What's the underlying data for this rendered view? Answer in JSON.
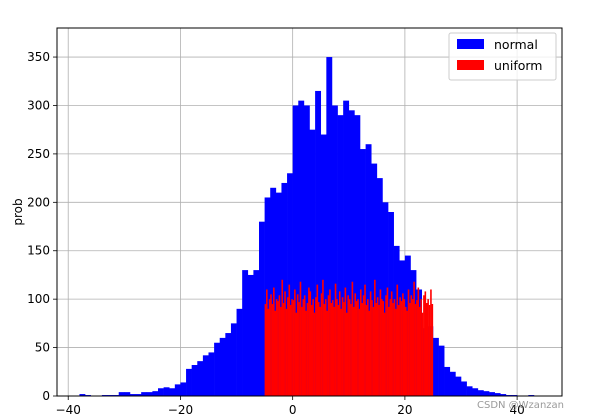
{
  "chart_data": {
    "type": "bar",
    "title": "",
    "xlabel": "",
    "ylabel": "prob",
    "xlim": [
      -42,
      48
    ],
    "ylim": [
      0,
      380
    ],
    "x_ticks": [
      -40,
      -20,
      0,
      20,
      40
    ],
    "y_ticks": [
      0,
      50,
      100,
      150,
      200,
      250,
      300,
      350
    ],
    "grid": true,
    "legend_position": "top-right",
    "series": [
      {
        "name": "normal",
        "color": "#0000ff",
        "bin_width": 1,
        "x": [
          -38,
          -37,
          -36,
          -35,
          -34,
          -33,
          -32,
          -31,
          -30,
          -29,
          -28,
          -27,
          -26,
          -25,
          -24,
          -23,
          -22,
          -21,
          -20,
          -19,
          -18,
          -17,
          -16,
          -15,
          -14,
          -13,
          -12,
          -11,
          -10,
          -9,
          -8,
          -7,
          -6,
          -5,
          -4,
          -3,
          -2,
          -1,
          0,
          1,
          2,
          3,
          4,
          5,
          6,
          7,
          8,
          9,
          10,
          11,
          12,
          13,
          14,
          15,
          16,
          17,
          18,
          19,
          20,
          21,
          22,
          23,
          24,
          25,
          26,
          27,
          28,
          29,
          30,
          31,
          32,
          33,
          34,
          35,
          36,
          37,
          38,
          39,
          40,
          41,
          42,
          43
        ],
        "values": [
          2,
          1,
          0,
          0,
          1,
          1,
          1,
          4,
          4,
          2,
          2,
          4,
          4,
          5,
          8,
          9,
          8,
          12,
          14,
          28,
          32,
          36,
          42,
          45,
          55,
          60,
          65,
          75,
          90,
          130,
          125,
          130,
          180,
          205,
          215,
          210,
          220,
          230,
          300,
          305,
          300,
          275,
          315,
          270,
          350,
          300,
          290,
          305,
          295,
          290,
          255,
          260,
          240,
          225,
          200,
          190,
          155,
          140,
          145,
          130,
          110,
          70,
          72,
          60,
          52,
          30,
          25,
          20,
          15,
          10,
          8,
          6,
          5,
          4,
          3,
          2,
          1,
          1,
          0,
          0,
          1,
          0
        ]
      },
      {
        "name": "uniform",
        "color": "#ff0000",
        "bin_width": 0.25,
        "x_start": -5,
        "values": [
          95,
          110,
          90,
          100,
          105,
          95,
          112,
          88,
          100,
          98,
          104,
          92,
          120,
          96,
          108,
          90,
          102,
          115,
          94,
          100,
          99,
          110,
          86,
          105,
          97,
          118,
          92,
          100,
          104,
          88,
          96,
          112,
          108,
          94,
          100,
          86,
          102,
          115,
          97,
          92,
          106,
          120,
          95,
          100,
          88,
          104,
          110,
          96,
          99,
          92,
          116,
          100,
          94,
          108,
          90,
          102,
          97,
          112,
          86,
          104,
          100,
          95,
          118,
          92,
          106,
          98,
          100,
          90,
          110,
          96,
          104,
          115,
          94,
          100,
          88,
          108,
          99,
          92,
          120,
          96,
          102,
          94,
          110,
          100,
          98,
          86,
          104,
          112,
          92,
          100,
          108,
          96,
          100,
          90,
          115,
          94,
          102,
          98,
          106,
          100,
          92,
          88,
          110,
          96,
          104,
          100,
          118,
          95,
          99,
          112,
          92,
          100,
          86,
          104,
          108,
          96,
          100,
          94,
          110,
          95
        ]
      }
    ]
  },
  "watermark": "CSDN @Wzanzan"
}
